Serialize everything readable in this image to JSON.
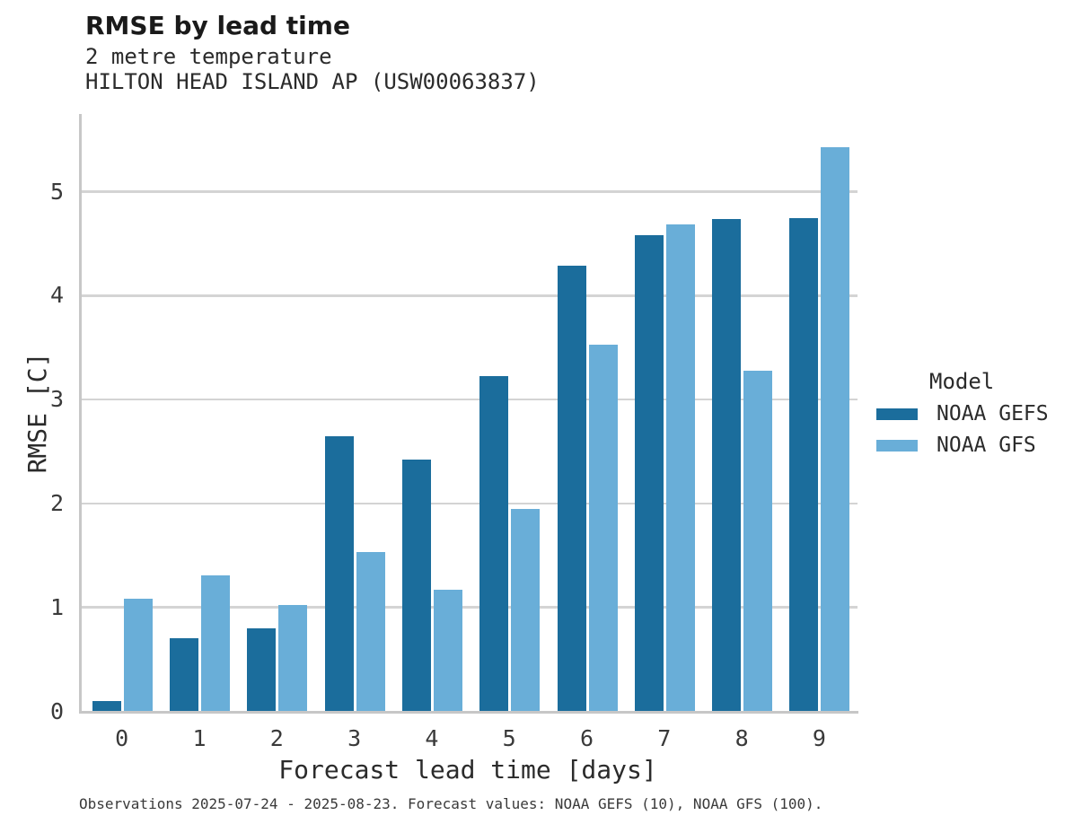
{
  "header": {
    "title": "RMSE by lead time",
    "subtitle": [
      "2 metre temperature",
      "HILTON HEAD ISLAND AP (USW00063837)"
    ]
  },
  "chart_data": {
    "type": "bar",
    "title": "RMSE by lead time",
    "subtitle": [
      "2 metre temperature",
      "HILTON HEAD ISLAND AP (USW00063837)"
    ],
    "categories": [
      "0",
      "1",
      "2",
      "3",
      "4",
      "5",
      "6",
      "7",
      "8",
      "9"
    ],
    "series": [
      {
        "name": "NOAA GEFS",
        "color": "#1b6d9c",
        "values": [
          0.1,
          0.7,
          0.8,
          2.65,
          2.42,
          3.23,
          4.29,
          4.58,
          4.74,
          4.75
        ]
      },
      {
        "name": "NOAA GFS",
        "color": "#69aed8",
        "values": [
          1.08,
          1.31,
          1.02,
          1.53,
          1.17,
          1.95,
          3.53,
          4.69,
          3.28,
          5.43
        ]
      }
    ],
    "xlabel": "Forecast lead time [days]",
    "ylabel": "RMSE [C]",
    "ylim": [
      0,
      5.74
    ],
    "yticks": [
      0,
      1,
      2,
      3,
      4,
      5
    ],
    "grid": "horizontal",
    "legend": {
      "title": "Model",
      "position": "right-center"
    }
  },
  "footer": {
    "text": "Observations 2025-07-24 - 2025-08-23. Forecast values: NOAA GEFS (10), NOAA GFS (100)."
  },
  "colors": {
    "gefs": "#1b6d9c",
    "gfs": "#69aed8",
    "gridline": "#d4d4d4",
    "spine": "#c7c7c7",
    "title_text": "#1a1a1a",
    "body_text": "#2b2b2b",
    "tick_text": "#3a3a3a"
  }
}
